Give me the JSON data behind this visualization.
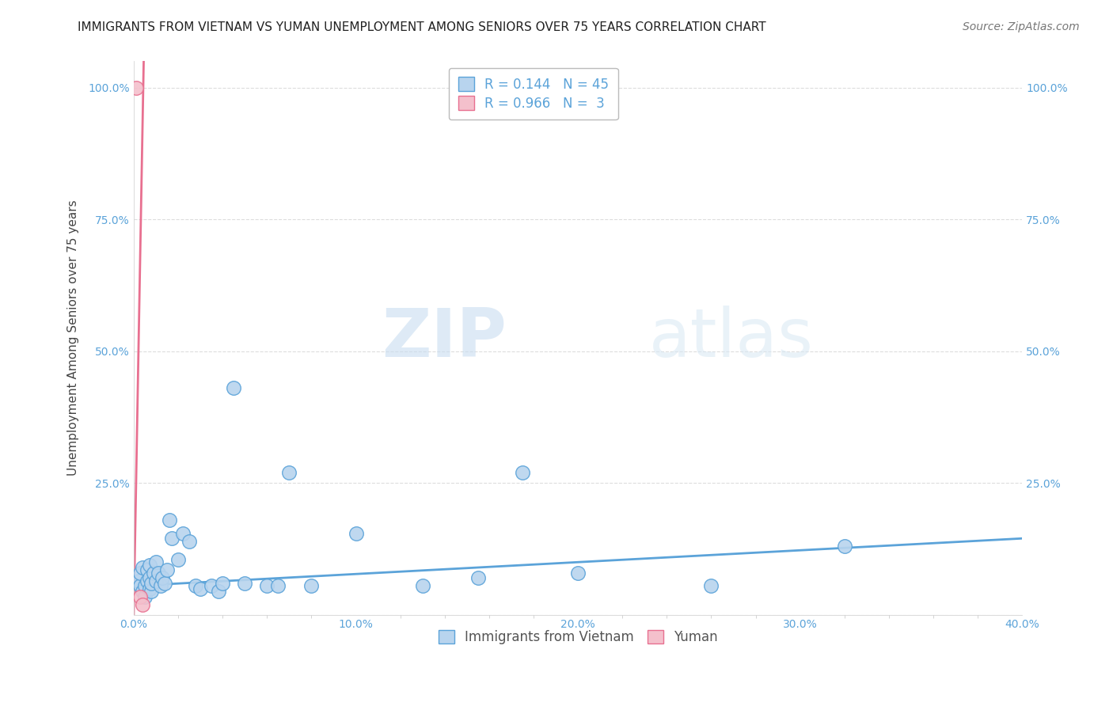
{
  "title": "IMMIGRANTS FROM VIETNAM VS YUMAN UNEMPLOYMENT AMONG SENIORS OVER 75 YEARS CORRELATION CHART",
  "source": "Source: ZipAtlas.com",
  "xlabel": "",
  "ylabel": "Unemployment Among Seniors over 75 years",
  "xlim": [
    0.0,
    0.4
  ],
  "ylim": [
    0.0,
    1.05
  ],
  "xtick_labels": [
    "0.0%",
    "",
    "",
    "",
    "",
    "10.0%",
    "",
    "",
    "",
    "",
    "20.0%",
    "",
    "",
    "",
    "",
    "30.0%",
    "",
    "",
    "",
    "",
    "40.0%"
  ],
  "xtick_vals": [
    0.0,
    0.02,
    0.04,
    0.06,
    0.08,
    0.1,
    0.12,
    0.14,
    0.16,
    0.18,
    0.2,
    0.22,
    0.24,
    0.26,
    0.28,
    0.3,
    0.32,
    0.34,
    0.36,
    0.38,
    0.4
  ],
  "xtick_major_labels": [
    "0.0%",
    "10.0%",
    "20.0%",
    "30.0%",
    "40.0%"
  ],
  "xtick_major_vals": [
    0.0,
    0.1,
    0.2,
    0.3,
    0.4
  ],
  "ytick_labels_left": [
    "",
    "25.0%",
    "50.0%",
    "75.0%",
    "100.0%"
  ],
  "ytick_vals": [
    0.0,
    0.25,
    0.5,
    0.75,
    1.0
  ],
  "ytick_labels_right": [
    "",
    "25.0%",
    "50.0%",
    "75.0%",
    "100.0%"
  ],
  "legend_entries": [
    {
      "label": "R = 0.144   N = 45",
      "color": "#aec6e8"
    },
    {
      "label": "R = 0.966   N =  3",
      "color": "#f4a0b0"
    }
  ],
  "blue_scatter_x": [
    0.002,
    0.003,
    0.003,
    0.004,
    0.004,
    0.005,
    0.005,
    0.006,
    0.006,
    0.007,
    0.007,
    0.007,
    0.008,
    0.008,
    0.009,
    0.01,
    0.01,
    0.011,
    0.012,
    0.013,
    0.014,
    0.015,
    0.016,
    0.017,
    0.02,
    0.022,
    0.025,
    0.028,
    0.03,
    0.035,
    0.038,
    0.04,
    0.045,
    0.05,
    0.06,
    0.065,
    0.07,
    0.08,
    0.1,
    0.13,
    0.155,
    0.175,
    0.2,
    0.26,
    0.32
  ],
  "blue_scatter_y": [
    0.065,
    0.055,
    0.08,
    0.045,
    0.09,
    0.035,
    0.055,
    0.065,
    0.085,
    0.05,
    0.07,
    0.095,
    0.045,
    0.06,
    0.08,
    0.065,
    0.1,
    0.08,
    0.055,
    0.07,
    0.06,
    0.085,
    0.18,
    0.145,
    0.105,
    0.155,
    0.14,
    0.055,
    0.05,
    0.055,
    0.045,
    0.06,
    0.43,
    0.06,
    0.055,
    0.055,
    0.27,
    0.055,
    0.155,
    0.055,
    0.07,
    0.27,
    0.08,
    0.055,
    0.13
  ],
  "pink_scatter_x": [
    0.001,
    0.003,
    0.004
  ],
  "pink_scatter_y": [
    1.0,
    0.035,
    0.02
  ],
  "blue_line_x": [
    0.0,
    0.4
  ],
  "blue_line_y": [
    0.055,
    0.145
  ],
  "pink_line_x": [
    0.0,
    0.0045
  ],
  "pink_line_y": [
    0.0,
    1.05
  ],
  "watermark_zip": "ZIP",
  "watermark_atlas": "atlas",
  "background_color": "#ffffff",
  "grid_color": "#dddddd",
  "grid_style": "--",
  "blue_color": "#5ba3d9",
  "blue_fill": "#b8d4ee",
  "pink_color": "#e87090",
  "pink_fill": "#f4c0cc",
  "title_fontsize": 11,
  "axis_label_fontsize": 11,
  "tick_fontsize": 10,
  "legend_fontsize": 12,
  "source_fontsize": 10,
  "marker_size": 160
}
